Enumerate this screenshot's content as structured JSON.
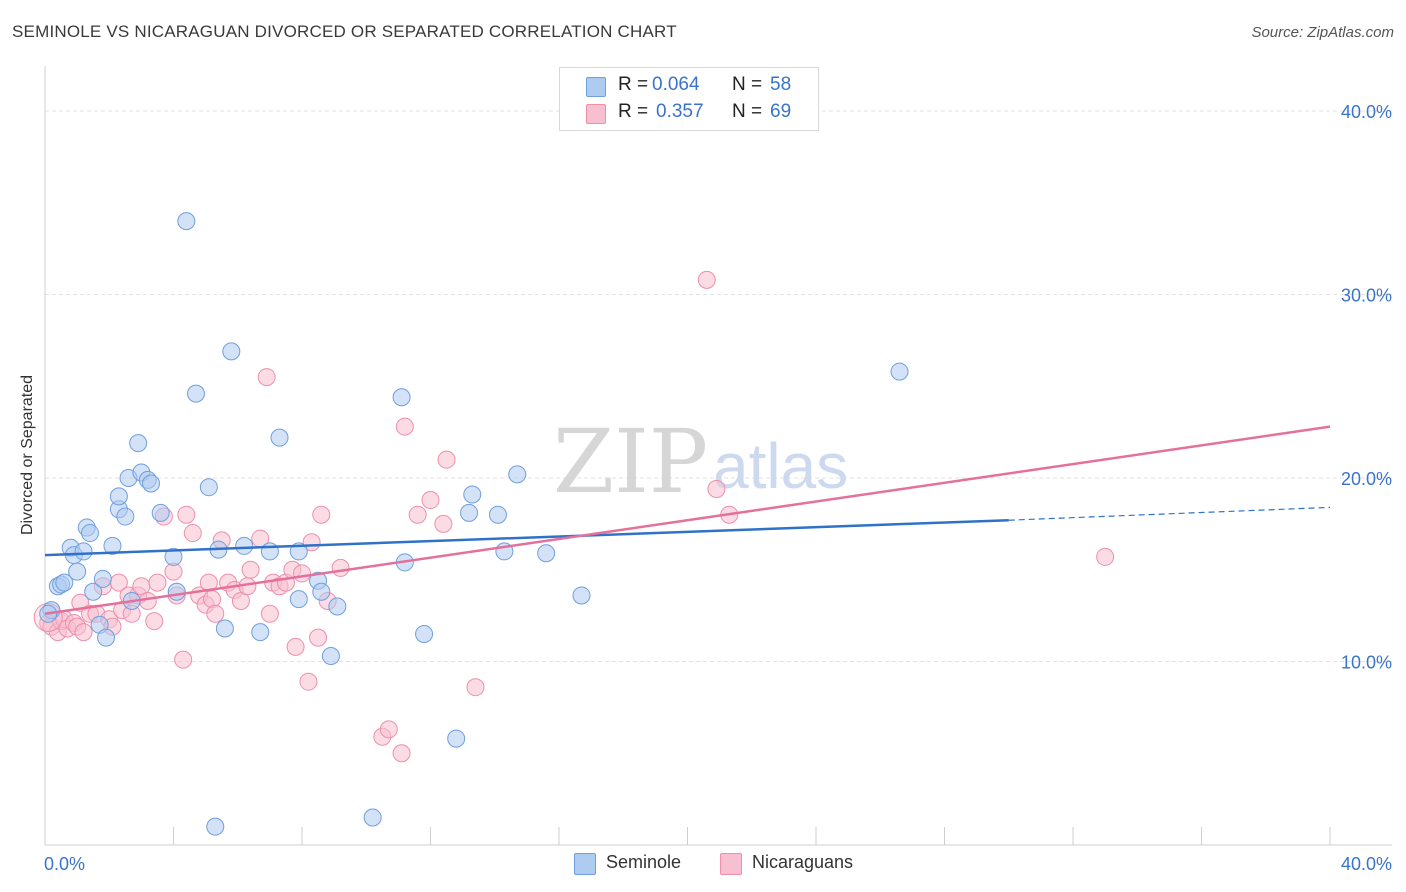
{
  "header": {
    "title": "SEMINOLE VS NICARAGUAN DIVORCED OR SEPARATED CORRELATION CHART",
    "source": "Source: ZipAtlas.com"
  },
  "watermark": {
    "zip": "ZIP",
    "atlas": "atlas"
  },
  "legend": {
    "seminole": {
      "r_label": "R =",
      "r_value": "0.064",
      "n_label": "N =",
      "n_value": "58"
    },
    "nicaraguans": {
      "r_label": "R =",
      "r_value": "0.357",
      "n_label": "N =",
      "n_value": "69"
    },
    "bottom": [
      "Seminole",
      "Nicaraguans"
    ]
  },
  "colors": {
    "seminole_fill": "#aecbf0",
    "seminole_stroke": "#6f9fde",
    "seminole_line": "#2f72c8",
    "nicaraguan_fill": "#f8bfd0",
    "nicaraguan_stroke": "#ee8fab",
    "nicaraguan_line": "#e4709b",
    "tick_text": "#3a74c9",
    "grid": "#e2e2e2"
  },
  "chart_data": {
    "type": "scatter",
    "title": "SEMINOLE VS NICARAGUAN DIVORCED OR SEPARATED CORRELATION CHART",
    "xlabel": "",
    "ylabel": "Divorced or Separated",
    "xlim": [
      0,
      40
    ],
    "ylim": [
      0,
      40
    ],
    "x_tick_labels": [
      "0.0%",
      "40.0%"
    ],
    "y_ticks": [
      10,
      20,
      30,
      40
    ],
    "y_tick_labels": [
      "10.0%",
      "20.0%",
      "30.0%",
      "40.0%"
    ],
    "grid": true,
    "legend_position": "top-center",
    "series": [
      {
        "name": "Seminole",
        "r": 0.064,
        "n": 58,
        "trend": {
          "x": [
            0,
            30
          ],
          "y": [
            15.8,
            17.7
          ],
          "dashed_extension_to_x": 40,
          "dashed_end_y": 18.4
        },
        "points": [
          [
            0.2,
            12.8
          ],
          [
            0.4,
            14.1
          ],
          [
            0.5,
            14.2
          ],
          [
            0.6,
            14.3
          ],
          [
            0.8,
            16.2
          ],
          [
            0.9,
            15.8
          ],
          [
            1.0,
            14.9
          ],
          [
            1.2,
            16.0
          ],
          [
            1.3,
            17.3
          ],
          [
            1.4,
            17.0
          ],
          [
            1.5,
            13.8
          ],
          [
            1.7,
            12.0
          ],
          [
            1.8,
            14.5
          ],
          [
            1.9,
            11.3
          ],
          [
            2.1,
            16.3
          ],
          [
            2.3,
            18.3
          ],
          [
            2.3,
            19.0
          ],
          [
            2.5,
            17.9
          ],
          [
            2.6,
            20.0
          ],
          [
            2.7,
            13.3
          ],
          [
            2.9,
            21.9
          ],
          [
            3.0,
            20.3
          ],
          [
            3.2,
            19.9
          ],
          [
            3.3,
            19.7
          ],
          [
            3.6,
            18.1
          ],
          [
            4.0,
            15.7
          ],
          [
            4.1,
            13.8
          ],
          [
            4.4,
            34.0
          ],
          [
            4.7,
            24.6
          ],
          [
            5.1,
            19.5
          ],
          [
            5.3,
            1.0
          ],
          [
            5.4,
            16.1
          ],
          [
            5.6,
            11.8
          ],
          [
            5.8,
            26.9
          ],
          [
            6.2,
            16.3
          ],
          [
            6.7,
            11.6
          ],
          [
            7.0,
            16.0
          ],
          [
            7.3,
            22.2
          ],
          [
            7.9,
            16.0
          ],
          [
            7.9,
            13.4
          ],
          [
            8.5,
            14.4
          ],
          [
            8.6,
            13.8
          ],
          [
            8.9,
            10.3
          ],
          [
            9.1,
            13.0
          ],
          [
            10.2,
            1.5
          ],
          [
            11.1,
            24.4
          ],
          [
            11.2,
            15.4
          ],
          [
            11.8,
            11.5
          ],
          [
            12.8,
            5.8
          ],
          [
            13.2,
            18.1
          ],
          [
            13.3,
            19.1
          ],
          [
            14.1,
            18.0
          ],
          [
            14.3,
            16.0
          ],
          [
            14.7,
            20.2
          ],
          [
            15.6,
            15.9
          ],
          [
            16.7,
            13.6
          ],
          [
            26.6,
            25.8
          ],
          [
            0.1,
            12.6
          ]
        ]
      },
      {
        "name": "Nicaraguans",
        "r": 0.357,
        "n": 69,
        "trend": {
          "x": [
            0,
            40
          ],
          "y": [
            12.6,
            22.8
          ]
        },
        "points": [
          [
            0.1,
            12.1
          ],
          [
            0.2,
            11.9
          ],
          [
            0.4,
            11.6
          ],
          [
            0.5,
            12.2
          ],
          [
            0.6,
            12.3
          ],
          [
            0.7,
            11.8
          ],
          [
            0.9,
            12.1
          ],
          [
            1.0,
            11.9
          ],
          [
            1.1,
            13.2
          ],
          [
            1.2,
            11.6
          ],
          [
            1.4,
            12.6
          ],
          [
            1.6,
            12.6
          ],
          [
            1.8,
            14.1
          ],
          [
            2.0,
            12.3
          ],
          [
            2.1,
            11.9
          ],
          [
            2.3,
            14.3
          ],
          [
            2.4,
            12.8
          ],
          [
            2.6,
            13.6
          ],
          [
            2.7,
            12.6
          ],
          [
            2.9,
            13.6
          ],
          [
            3.0,
            14.1
          ],
          [
            3.2,
            13.3
          ],
          [
            3.4,
            12.2
          ],
          [
            3.5,
            14.3
          ],
          [
            3.7,
            17.9
          ],
          [
            4.0,
            14.9
          ],
          [
            4.1,
            13.6
          ],
          [
            4.3,
            10.1
          ],
          [
            4.4,
            18.0
          ],
          [
            4.6,
            17.0
          ],
          [
            4.8,
            13.6
          ],
          [
            5.0,
            13.1
          ],
          [
            5.1,
            14.3
          ],
          [
            5.2,
            13.4
          ],
          [
            5.3,
            12.6
          ],
          [
            5.5,
            16.6
          ],
          [
            5.7,
            14.3
          ],
          [
            5.9,
            13.9
          ],
          [
            6.1,
            13.3
          ],
          [
            6.3,
            14.1
          ],
          [
            6.4,
            15.0
          ],
          [
            6.7,
            16.7
          ],
          [
            6.9,
            25.5
          ],
          [
            7.0,
            12.6
          ],
          [
            7.1,
            14.3
          ],
          [
            7.3,
            14.1
          ],
          [
            7.5,
            14.3
          ],
          [
            7.7,
            15.0
          ],
          [
            7.8,
            10.8
          ],
          [
            8.0,
            14.8
          ],
          [
            8.2,
            8.9
          ],
          [
            8.3,
            16.5
          ],
          [
            8.5,
            11.3
          ],
          [
            8.6,
            18.0
          ],
          [
            8.8,
            13.3
          ],
          [
            9.2,
            15.1
          ],
          [
            10.5,
            5.9
          ],
          [
            10.7,
            6.3
          ],
          [
            11.1,
            5.0
          ],
          [
            11.2,
            22.8
          ],
          [
            11.6,
            18.0
          ],
          [
            12.0,
            18.8
          ],
          [
            12.4,
            17.5
          ],
          [
            12.5,
            21.0
          ],
          [
            13.4,
            8.6
          ],
          [
            20.6,
            30.8
          ],
          [
            20.9,
            19.4
          ],
          [
            21.3,
            18.0
          ],
          [
            33.0,
            15.7
          ]
        ]
      }
    ]
  }
}
